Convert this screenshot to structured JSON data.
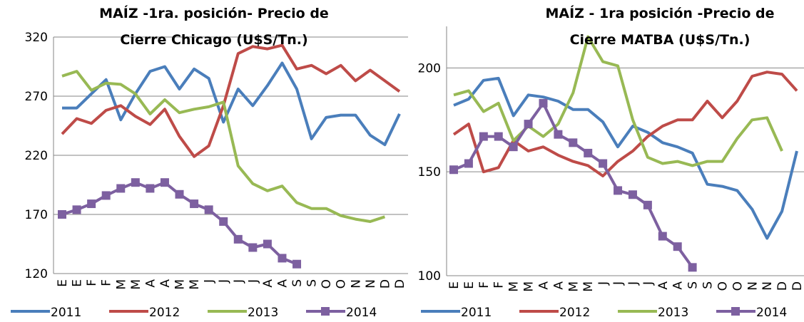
{
  "chart_data": [
    {
      "type": "line",
      "title": [
        "MAÍZ -1ra. posición- Precio de",
        "Cierre Chicago (U$S/Tn.)"
      ],
      "categories": [
        "E",
        "E",
        "F",
        "F",
        "M",
        "M",
        "A",
        "A",
        "M",
        "M",
        "J",
        "J",
        "J",
        "J",
        "A",
        "A",
        "S",
        "S",
        "O",
        "O",
        "N",
        "N",
        "D",
        "D"
      ],
      "ylim": [
        120,
        320
      ],
      "yticks": [
        120,
        170,
        220,
        270,
        320
      ],
      "grid": true,
      "series": [
        {
          "name": "2011",
          "color": "#4a7ebb",
          "values": [
            260,
            260,
            272,
            284,
            250,
            272,
            291,
            295,
            276,
            293,
            285,
            248,
            276,
            262,
            279,
            298,
            276,
            234,
            252,
            254,
            254,
            237,
            229,
            255
          ]
        },
        {
          "name": "2012",
          "color": "#be4b48",
          "values": [
            238,
            251,
            247,
            258,
            262,
            253,
            246,
            259,
            236,
            219,
            228,
            262,
            306,
            312,
            310,
            313,
            293,
            296,
            289,
            296,
            283,
            292,
            283,
            274
          ]
        },
        {
          "name": "2013",
          "color": "#98b954",
          "values": [
            287,
            291,
            275,
            281,
            280,
            272,
            255,
            267,
            256,
            259,
            261,
            265,
            211,
            196,
            190,
            194,
            180,
            175,
            175,
            169,
            166,
            164,
            168,
            null
          ]
        },
        {
          "name": "2014",
          "color": "#7d60a0",
          "marker": "square",
          "values": [
            170,
            174,
            179,
            186,
            192,
            197,
            192,
            197,
            187,
            179,
            174,
            164,
            149,
            142,
            145,
            133,
            128,
            null,
            null,
            null,
            null,
            null,
            null,
            null
          ]
        }
      ]
    },
    {
      "type": "line",
      "title": [
        "MAÍZ - 1ra posición -Precio de",
        "Cierre MATBA (U$S/Tn.)"
      ],
      "categories": [
        "E",
        "E",
        "F",
        "F",
        "M",
        "M",
        "A",
        "A",
        "M",
        "M",
        "J",
        "J",
        "J",
        "J",
        "A",
        "A",
        "S",
        "S",
        "O",
        "O",
        "N",
        "N",
        "D",
        "D"
      ],
      "ylim": [
        100,
        220
      ],
      "yticks": [
        100,
        150,
        200
      ],
      "grid": true,
      "series": [
        {
          "name": "2011",
          "color": "#4a7ebb",
          "values": [
            182,
            185,
            194,
            195,
            177,
            187,
            186,
            184,
            180,
            180,
            174,
            162,
            172,
            169,
            164,
            162,
            159,
            144,
            143,
            141,
            132,
            118,
            131,
            160
          ]
        },
        {
          "name": "2012",
          "color": "#be4b48",
          "values": [
            168,
            173,
            150,
            152,
            165,
            160,
            162,
            158,
            155,
            153,
            148,
            155,
            160,
            167,
            172,
            175,
            175,
            184,
            176,
            184,
            196,
            198,
            197,
            189
          ]
        },
        {
          "name": "2013",
          "color": "#98b954",
          "values": [
            187,
            189,
            179,
            183,
            165,
            172,
            167,
            173,
            188,
            215,
            203,
            201,
            175,
            157,
            154,
            155,
            153,
            155,
            155,
            166,
            175,
            176,
            160,
            null
          ]
        },
        {
          "name": "2014",
          "color": "#7d60a0",
          "marker": "square",
          "values": [
            151,
            154,
            167,
            167,
            162,
            173,
            183,
            168,
            164,
            159,
            154,
            141,
            139,
            134,
            119,
            114,
            104,
            null,
            null,
            null,
            null,
            null,
            null,
            null
          ]
        }
      ]
    }
  ]
}
